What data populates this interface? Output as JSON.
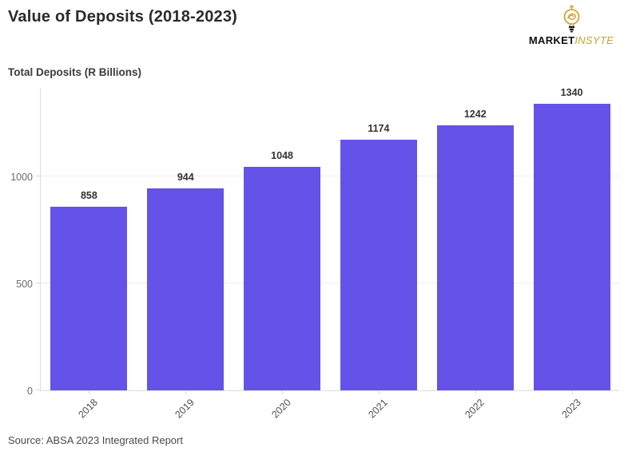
{
  "header": {
    "title": "Value of Deposits (2018-2023)",
    "logo": {
      "brand_primary": "MARKET",
      "brand_accent": "INSYTE",
      "icon": "lightbulb-icon"
    }
  },
  "chart_data": {
    "type": "bar",
    "title": "Value of Deposits (2018-2023)",
    "axis_title": "Total Deposits (R Billions)",
    "categories": [
      "2018",
      "2019",
      "2020",
      "2021",
      "2022",
      "2023"
    ],
    "values": [
      858,
      944,
      1048,
      1174,
      1242,
      1340
    ],
    "yticks": [
      0,
      500,
      1000
    ],
    "ylim": [
      0,
      1420
    ],
    "grid": "horizontal",
    "legend": "none",
    "data_labels": true,
    "xlabel": "",
    "ylabel": "Total Deposits (R Billions)"
  },
  "footer": {
    "source": "Source: ABSA 2023 Integrated Report"
  },
  "colors": {
    "bar": "#6552e8",
    "gold": "#c9a22f",
    "title_text": "#2b2b2b",
    "axis_text": "#6b6b6b",
    "label_text": "#333333"
  }
}
